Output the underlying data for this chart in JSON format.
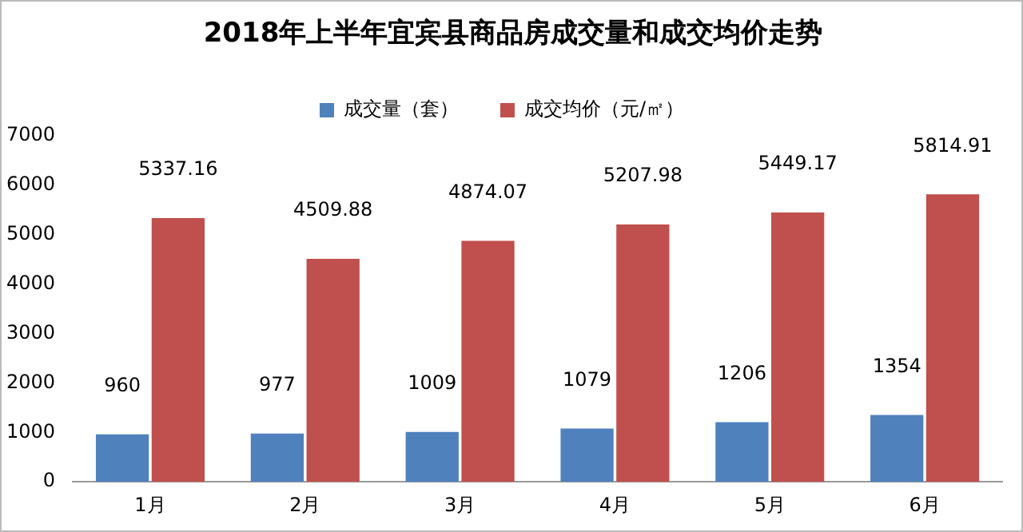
{
  "chart_data": {
    "type": "bar",
    "title": "2018年上半年宜宾县商品房成交量和成交均价走势",
    "categories": [
      "1月",
      "2月",
      "3月",
      "4月",
      "5月",
      "6月"
    ],
    "series": [
      {
        "name": "成交量（套）",
        "color": "#4f81bd",
        "values": [
          960,
          977,
          1009,
          1079,
          1206,
          1354
        ]
      },
      {
        "name": "成交均价（元/㎡）",
        "color": "#c0504d",
        "values": [
          5337.16,
          4509.88,
          4874.07,
          5207.98,
          5449.17,
          5814.91
        ]
      }
    ],
    "ylim": [
      0,
      7000
    ],
    "yticks": [
      0,
      1000,
      2000,
      3000,
      4000,
      5000,
      6000,
      7000
    ],
    "grid": false,
    "legend": "top",
    "data_labels": true
  }
}
